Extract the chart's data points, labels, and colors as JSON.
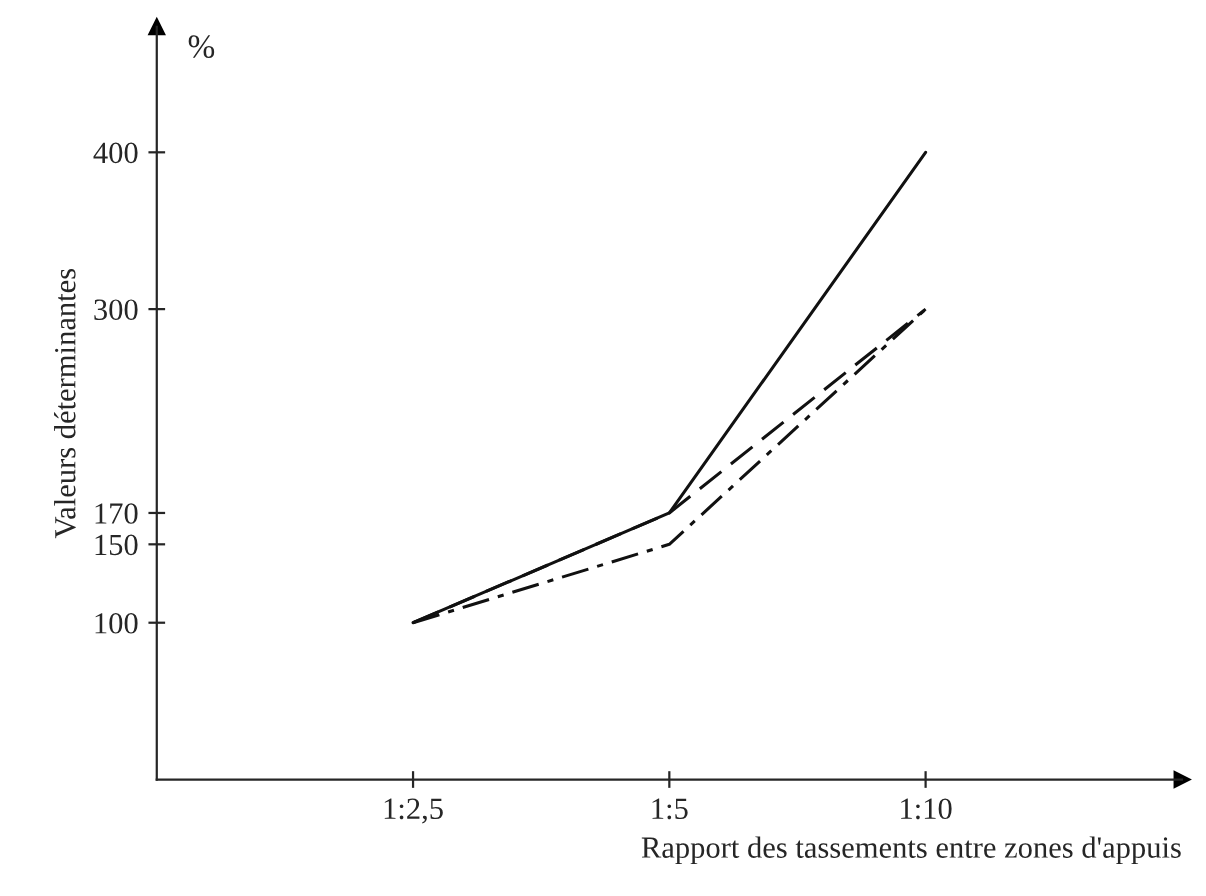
{
  "chart_data": {
    "type": "line",
    "xlabel": "Rapport des tassements entre zones d'appuis",
    "ylabel": "Valeurs déterminantes",
    "annotations": [
      "%"
    ],
    "categories": [
      "1:2,5",
      "1:5",
      "1:10"
    ],
    "ylim": [
      0,
      480
    ],
    "yticks": [
      100,
      150,
      170,
      300,
      400
    ],
    "series": [
      {
        "color": "#111111",
        "values": [
          100,
          170,
          400
        ],
        "line_style": "solid"
      },
      {
        "color": "#111111",
        "values": [
          100,
          170,
          300
        ],
        "line_style": "dashed"
      },
      {
        "color": "#111111",
        "values": [
          100,
          150,
          300
        ],
        "line_style": "dashdot"
      }
    ],
    "grid": false,
    "legend": false,
    "marker": "none"
  }
}
